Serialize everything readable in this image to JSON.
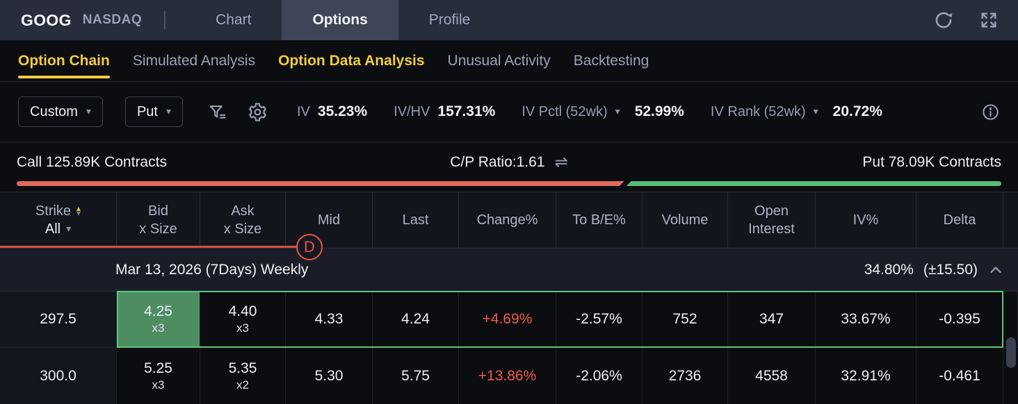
{
  "colors": {
    "accent_yellow": "#f0cd3a",
    "call_red": "#e16a5c",
    "put_green": "#58bb74",
    "change_red": "#ef5a48",
    "selection_green": "#5dc57c",
    "bid_fill_green": "#4e8d62",
    "annotation_red": "#e65546"
  },
  "icons": {
    "refresh": "circular-arrow",
    "fullscreen": "expand-arrows",
    "filter": "funnel-equals",
    "settings": "gear",
    "info": "circle-i",
    "swap": "⇌",
    "caret": "▾",
    "sort_up": "▴",
    "sort_down": "▾",
    "chevron_up": "chevron-up"
  },
  "top_bar": {
    "symbol": "GOOG",
    "exchange": "NASDAQ",
    "tabs": [
      {
        "label": "Chart"
      },
      {
        "label": "Options"
      },
      {
        "label": "Profile"
      }
    ]
  },
  "sub_nav": [
    {
      "label": "Option Chain"
    },
    {
      "label": "Simulated Analysis"
    },
    {
      "label": "Option Data Analysis"
    },
    {
      "label": "Unusual Activity"
    },
    {
      "label": "Backtesting"
    }
  ],
  "toolbar": {
    "custom_label": "Custom",
    "put_label": "Put",
    "iv_label": "IV",
    "iv_value": "35.23%",
    "ivhv_label": "IV/HV",
    "ivhv_value": "157.31%",
    "ivpctl_label": "IV Pctl (52wk)",
    "ivpctl_value": "52.99%",
    "ivrank_label": "IV Rank (52wk)",
    "ivrank_value": "20.72%"
  },
  "ratio": {
    "call_label": "Call 125.89K Contracts",
    "cp_label": "C/P Ratio:1.61",
    "put_label": "Put 78.09K Contracts",
    "call_percent": 61.7
  },
  "annotation": {
    "label": "D"
  },
  "table": {
    "header": {
      "strike_line1": "Strike",
      "strike_line2": "All",
      "bid_line1": "Bid",
      "bid_line2": "x Size",
      "ask_line1": "Ask",
      "ask_line2": "x Size",
      "mid": "Mid",
      "last": "Last",
      "change": "Change%",
      "to_be": "To B/E%",
      "volume": "Volume",
      "oi_line1": "Open",
      "oi_line2": "Interest",
      "iv": "IV%",
      "delta": "Delta"
    },
    "group_row": {
      "date": "Mar 13, 2026 (7Days) Weekly",
      "iv": "34.80%",
      "range": "(±15.50)"
    },
    "rows": [
      {
        "strike": "297.5",
        "bid": "4.25",
        "bid_size": "x3",
        "ask": "4.40",
        "ask_size": "x3",
        "mid": "4.33",
        "last": "4.24",
        "change": "+4.69%",
        "to_be": "-2.57%",
        "volume": "752",
        "open_interest": "347",
        "iv": "33.67%",
        "delta": "-0.395"
      },
      {
        "strike": "300.0",
        "bid": "5.25",
        "bid_size": "x3",
        "ask": "5.35",
        "ask_size": "x2",
        "mid": "5.30",
        "last": "5.75",
        "change": "+13.86%",
        "to_be": "-2.06%",
        "volume": "2736",
        "open_interest": "4558",
        "iv": "32.91%",
        "delta": "-0.461"
      }
    ]
  }
}
